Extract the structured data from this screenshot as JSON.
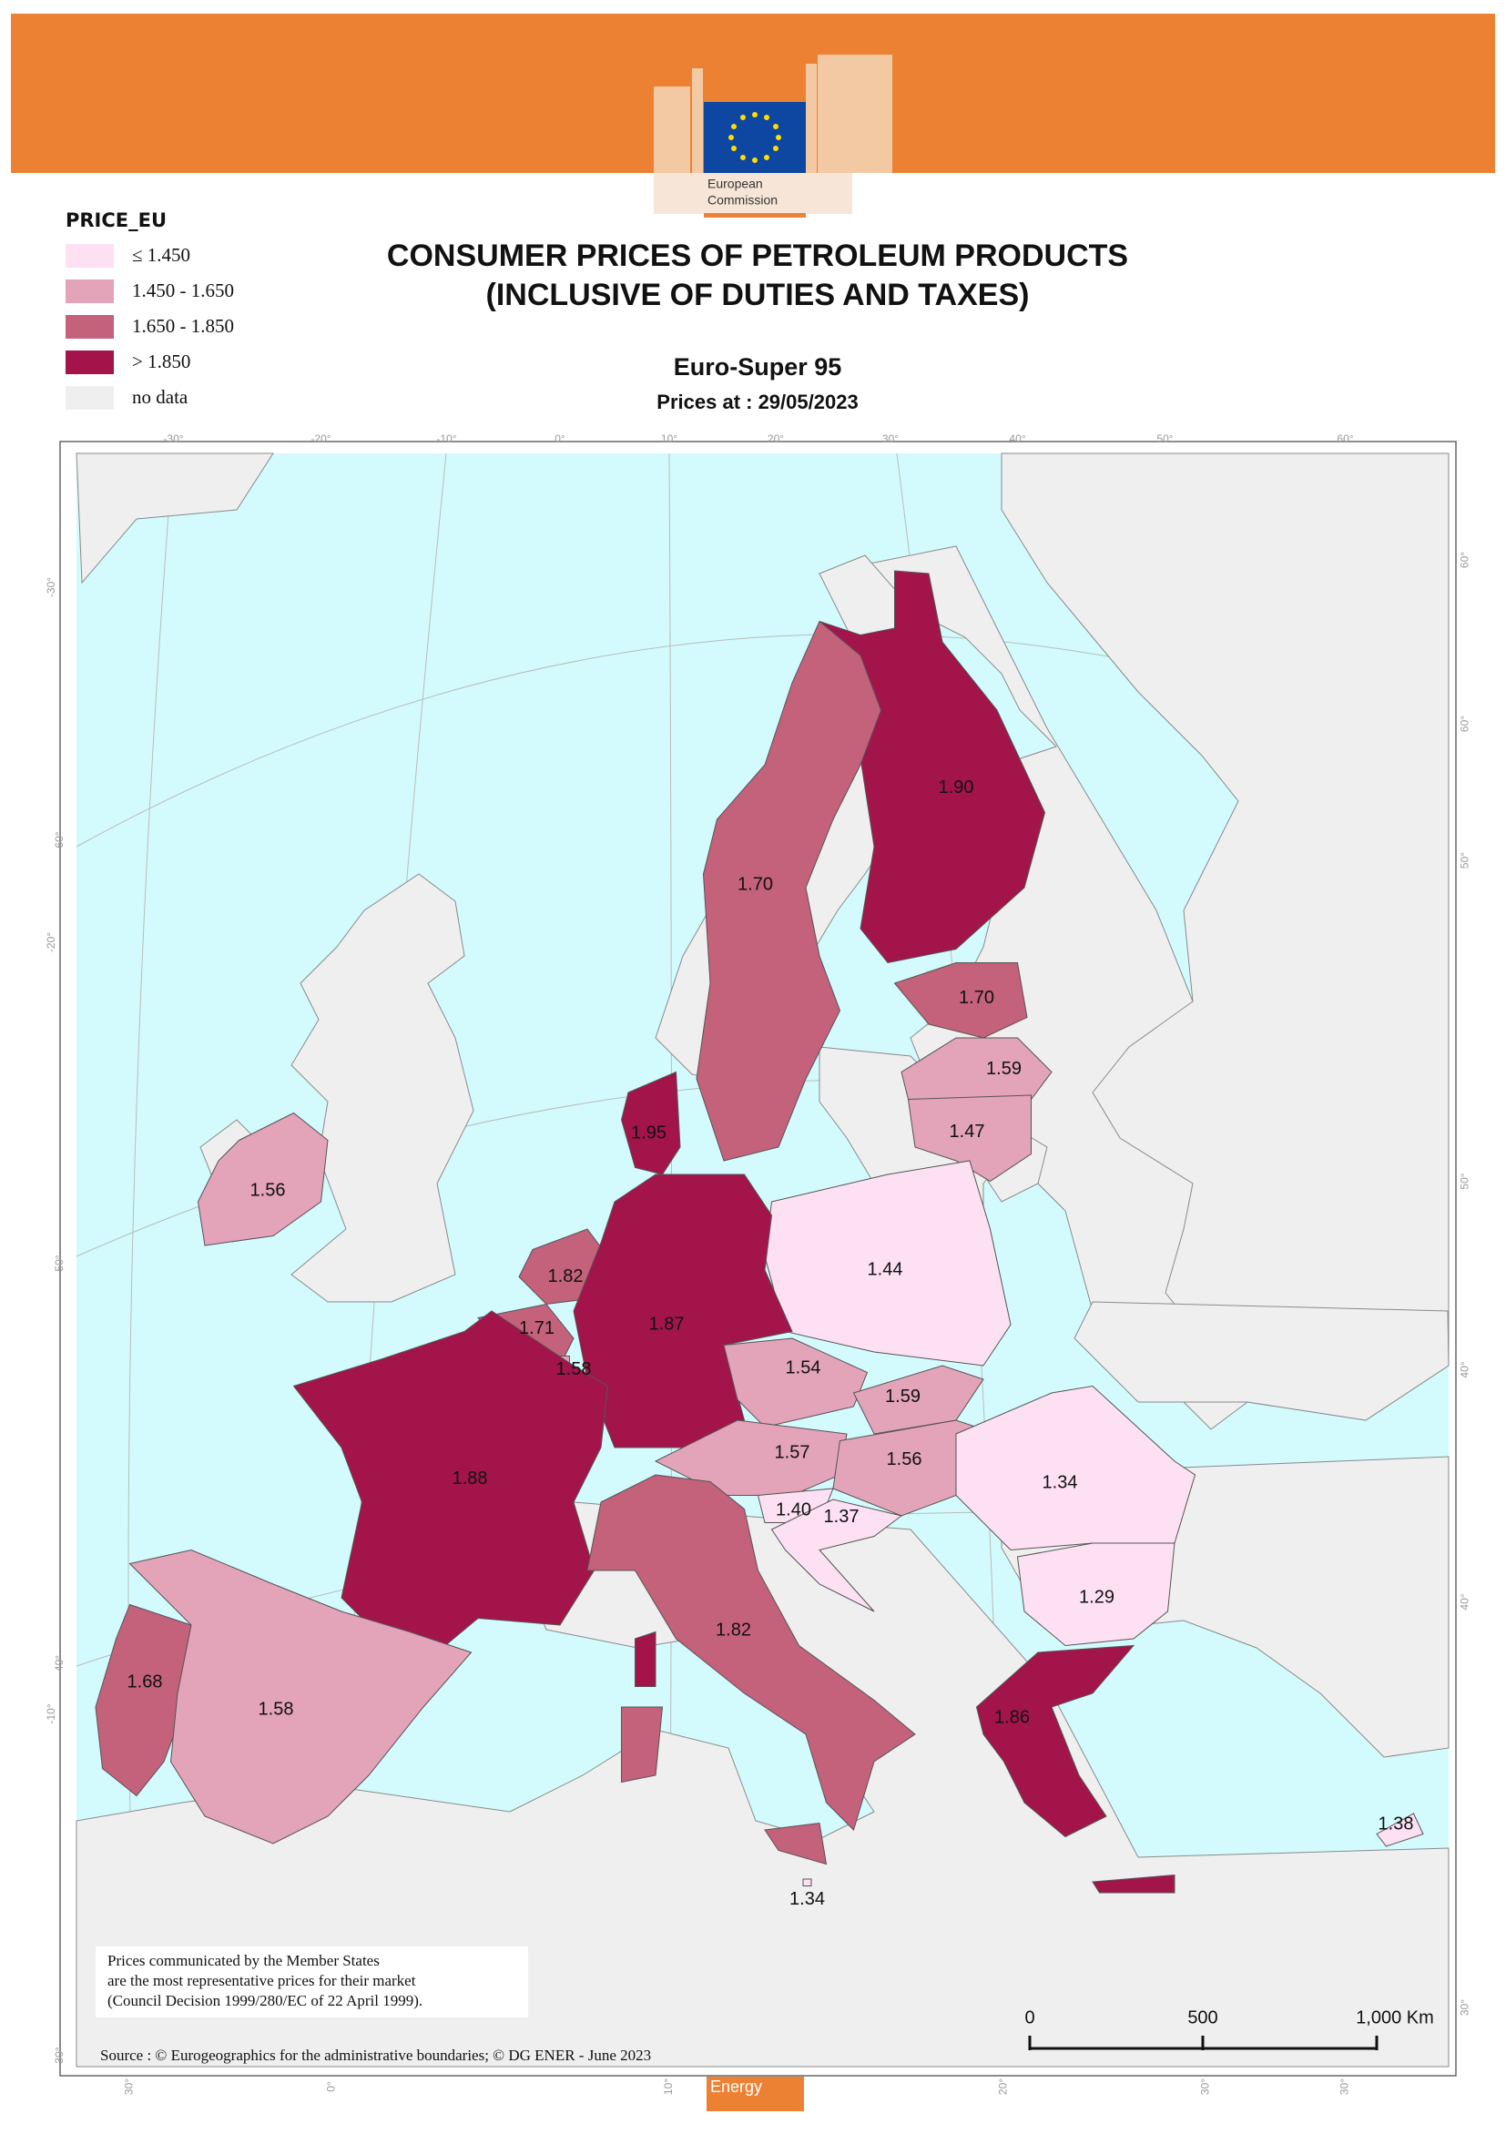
{
  "header": {
    "logo_text_1": "European",
    "logo_text_2": "Commission",
    "footer_tag": "Energy"
  },
  "legend": {
    "title": "PRICE_EU",
    "items": [
      {
        "label": "≤ 1.450",
        "color": "#fde1f3"
      },
      {
        "label": "1.450 - 1.650",
        "color": "#e3a3b8"
      },
      {
        "label": "1.650 - 1.850",
        "color": "#c4617b"
      },
      {
        "label": "> 1.850",
        "color": "#a3144a"
      },
      {
        "label": "no data",
        "color": "#efefef"
      }
    ]
  },
  "title": {
    "line1": "CONSUMER PRICES OF PETROLEUM PRODUCTS",
    "line2": "(INCLUSIVE OF DUTIES AND TAXES)"
  },
  "subtitle": "Euro-Super 95",
  "date": "Prices at : 29/05/2023",
  "regions": [
    {
      "value": "1.90",
      "color": "#a3144a"
    },
    {
      "value": "1.70",
      "color": "#c4617b"
    },
    {
      "value": "1.70",
      "color": "#c4617b"
    },
    {
      "value": "1.59",
      "color": "#e3a3b8"
    },
    {
      "value": "1.47",
      "color": "#e3a3b8"
    },
    {
      "value": "1.95",
      "color": "#a3144a"
    },
    {
      "value": "1.56",
      "color": "#e3a3b8"
    },
    {
      "value": "1.44",
      "color": "#fde1f3"
    },
    {
      "value": "1.82",
      "color": "#c4617b"
    },
    {
      "value": "1.87",
      "color": "#a3144a"
    },
    {
      "value": "1.71",
      "color": "#c4617b"
    },
    {
      "value": "1.58",
      "color": "#e3a3b8"
    },
    {
      "value": "1.54",
      "color": "#e3a3b8"
    },
    {
      "value": "1.59",
      "color": "#e3a3b8"
    },
    {
      "value": "1.57",
      "color": "#e3a3b8"
    },
    {
      "value": "1.56",
      "color": "#e3a3b8"
    },
    {
      "value": "1.34",
      "color": "#fde1f3"
    },
    {
      "value": "1.88",
      "color": "#a3144a"
    },
    {
      "value": "1.40",
      "color": "#fde1f3"
    },
    {
      "value": "1.37",
      "color": "#fde1f3"
    },
    {
      "value": "1.29",
      "color": "#fde1f3"
    },
    {
      "value": "1.82",
      "color": "#c4617b"
    },
    {
      "value": "1.68",
      "color": "#c4617b"
    },
    {
      "value": "1.58",
      "color": "#e3a3b8"
    },
    {
      "value": "1.86",
      "color": "#a3144a"
    },
    {
      "value": "1.38",
      "color": "#fde1f3"
    },
    {
      "value": "1.34",
      "color": "#fde1f3"
    }
  ],
  "graticule_labels": {
    "top": [
      "-30°",
      "-20°",
      "-10°",
      "0°",
      "10°",
      "20°",
      "30°",
      "40°",
      "50°",
      "60°"
    ],
    "right": [
      "60°",
      "60°",
      "50°",
      "50°",
      "40°",
      "40°",
      "30°"
    ],
    "left": [
      "-30°",
      "60°",
      "-20°",
      "50°",
      "40°",
      "-10°",
      "30°"
    ],
    "bottom": [
      "30°",
      "0°",
      "10°",
      "20°",
      "30°",
      "30°"
    ]
  },
  "note": {
    "line1": "Prices communicated by the Member States",
    "line2": "are the most representative prices for their market",
    "line3": "(Council Decision 1999/280/EC of 22 April 1999)."
  },
  "source": "Source : © Eurogeographics for the administrative boundaries;  ©  DG ENER - June 2023",
  "scale_bar": {
    "labels": [
      "0",
      "500",
      "1,000 Km"
    ]
  }
}
